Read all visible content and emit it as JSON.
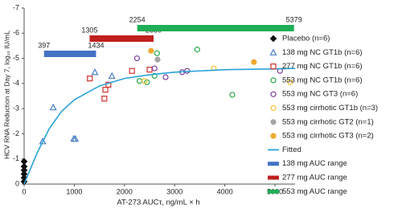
{
  "chart_data": {
    "type": "scatter",
    "x_label": "AT-273 AUCτ, ng/mL × h",
    "y_label": "HCV RNA Reduction at Day 7, log₁₀ IU/mL",
    "xlim": [
      0,
      5400
    ],
    "ylim": [
      0,
      -7
    ],
    "xticks": [
      0,
      1000,
      2000,
      3000,
      4000,
      5000
    ],
    "yticks": [
      0,
      -1,
      -2,
      -3,
      -4,
      -5,
      -6,
      -7
    ],
    "series": [
      {
        "name": "Placebo (n=6)",
        "color": "#111111",
        "marker": "diamond",
        "filled": true,
        "x": [
          0,
          0,
          0,
          0,
          0,
          0
        ],
        "values": [
          -0.1,
          -0.25,
          -0.4,
          -0.55,
          -0.7,
          -0.9
        ]
      },
      {
        "name": "138 mg NC GT1b (n=6)",
        "color": "#4a7fc1",
        "marker": "triangle",
        "filled": false,
        "x": [
          370,
          580,
          990,
          1020,
          1410,
          1750
        ],
        "values": [
          -1.7,
          -3.05,
          -1.8,
          -1.8,
          -4.45,
          -4.3
        ]
      },
      {
        "name": "277 mg NC GT1b (n=6)",
        "color": "#d0312d",
        "marker": "square",
        "filled": false,
        "x": [
          1310,
          1600,
          1620,
          1680,
          2150,
          2500
        ],
        "values": [
          -4.2,
          -3.4,
          -3.75,
          -3.95,
          -4.5,
          -4.55
        ]
      },
      {
        "name": "553 mg NC GT1b (n=6)",
        "color": "#2aa84a",
        "marker": "circle",
        "filled": false,
        "x": [
          2300,
          2450,
          2600,
          3450,
          4150,
          2650
        ],
        "values": [
          -4.1,
          -4.05,
          -4.3,
          -5.35,
          -3.55,
          -5.2
        ]
      },
      {
        "name": "553 mg NC GT3 (n=6)",
        "color": "#7b3f9e",
        "marker": "circle",
        "filled": false,
        "x": [
          2250,
          2820,
          3150,
          3250,
          2600,
          5100
        ],
        "values": [
          -5.0,
          -4.25,
          -4.45,
          -4.5,
          -4.6,
          -4.5
        ]
      },
      {
        "name": "553 mg cirrhotic GT1b (n=3)",
        "color": "#f2c12e",
        "marker": "circle",
        "filled": false,
        "x": [
          2400,
          3780,
          5300
        ],
        "values": [
          -4.1,
          -4.6,
          -4.05
        ]
      },
      {
        "name": "553 mg cirrhotic GT2 (n=1)",
        "color": "#a6a6a6",
        "marker": "circle",
        "filled": true,
        "x": [
          2660
        ],
        "values": [
          -4.95
        ]
      },
      {
        "name": "553 mg cirrhotic GT3 (n=2)",
        "color": "#f0a830",
        "marker": "circle",
        "filled": true,
        "x": [
          2530,
          4580
        ],
        "values": [
          -5.3,
          -4.85
        ]
      },
      {
        "name": "Fitted",
        "color": "#29a3d8",
        "marker": "line",
        "filled": false,
        "x": [
          0,
          250,
          500,
          750,
          1000,
          1500,
          2000,
          2500,
          3000,
          4000,
          5000,
          5400
        ],
        "values": [
          0,
          -1.2,
          -2.2,
          -2.9,
          -3.35,
          -3.9,
          -4.2,
          -4.35,
          -4.45,
          -4.55,
          -4.58,
          -4.6
        ]
      }
    ],
    "ranges": [
      {
        "name": "138 mg AUC range",
        "color": "#4472c4",
        "start": 397,
        "end": 1434
      },
      {
        "name": "277 mg AUC range",
        "color": "#c0201e",
        "start": 1305,
        "end": 2580
      },
      {
        "name": "553 mg AUC range",
        "color": "#1fae55",
        "start": 2254,
        "end": 5379
      }
    ]
  }
}
